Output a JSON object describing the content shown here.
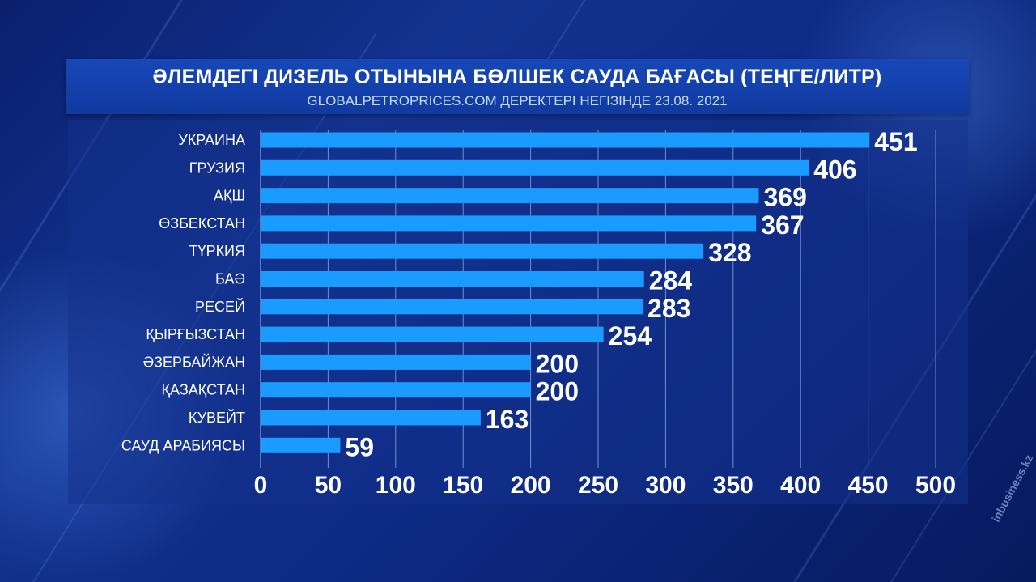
{
  "title": "ӘЛЕМДЕГІ ДИЗЕЛЬ ОТЫНЫНА БӨЛШЕК САУДА БАҒАСЫ (ТЕҢГЕ/ЛИТР)",
  "subtitle": "GLOBALPETROPRICES.COM ДЕРЕКТЕРІ НЕГІЗІНДЕ 23.08. 2021",
  "watermark": "inbusiness.kz",
  "colors": {
    "bar": "#1a9bff",
    "grid": "#6f8fd6",
    "label": "#ffffff",
    "background": "#0d2a85"
  },
  "chart_data": {
    "type": "bar",
    "orientation": "horizontal",
    "categories": [
      "УКРАИНА",
      "ГРУЗИЯ",
      "АҚШ",
      "ӨЗБЕКСТАН",
      "ТҮРКИЯ",
      "БАӘ",
      "РЕСЕЙ",
      "ҚЫРҒЫЗСТАН",
      "ӘЗЕРБАЙЖАН",
      "ҚАЗАҚСТАН",
      "КУВЕЙТ",
      "САУД АРАБИЯСЫ"
    ],
    "values": [
      451,
      406,
      369,
      367,
      328,
      284,
      283,
      254,
      200,
      200,
      163,
      59
    ],
    "xlim": [
      0,
      500
    ],
    "xticks": [
      0,
      50,
      100,
      150,
      200,
      250,
      300,
      350,
      400,
      450,
      500
    ],
    "grid": true,
    "data_labels": true
  }
}
